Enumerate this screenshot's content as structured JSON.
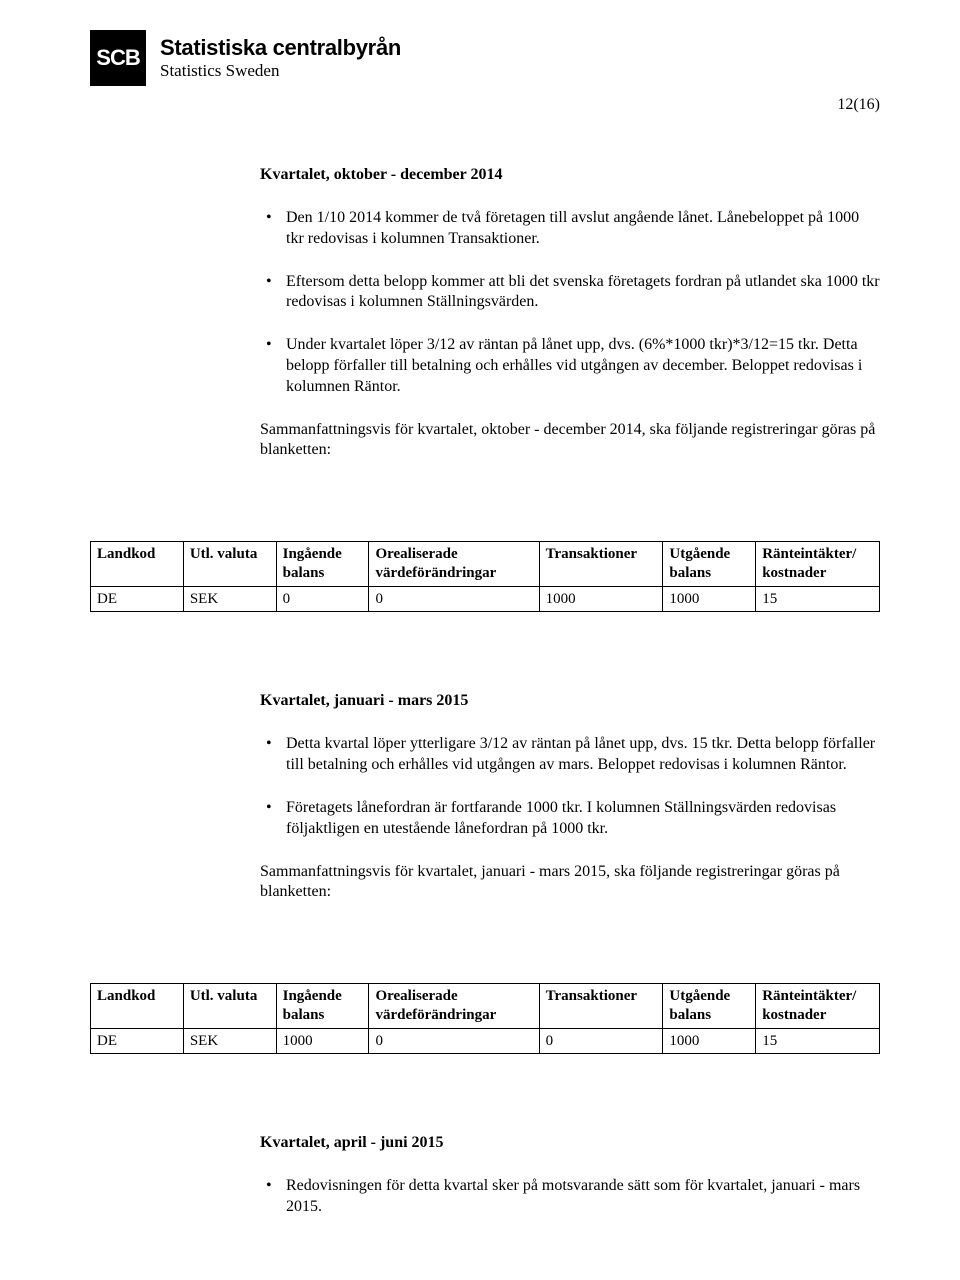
{
  "header": {
    "logo_abbr": "SCB",
    "logo_line1": "Statistiska centralbyrån",
    "logo_line2": "Statistics Sweden"
  },
  "page_number": "12(16)",
  "sections": {
    "s1": {
      "title": "Kvartalet, oktober - december 2014",
      "bullets": [
        "Den 1/10 2014 kommer de två företagen till avslut angående lånet. Lånebeloppet på 1000 tkr redovisas i kolumnen Transaktioner.",
        "Eftersom detta belopp kommer att bli det svenska företagets fordran på utlandet ska 1000 tkr redovisas i kolumnen Ställningsvärden.",
        "Under kvartalet löper 3/12 av räntan på lånet upp, dvs. (6%*1000 tkr)*3/12=15 tkr. Detta belopp förfaller till betalning och erhålles vid utgången av december. Beloppet redovisas i kolumnen Räntor."
      ],
      "summary": "Sammanfattningsvis för kvartalet, oktober - december 2014, ska följande registreringar göras på blanketten:"
    },
    "s2": {
      "title": "Kvartalet, januari - mars 2015",
      "bullets": [
        "Detta kvartal löper ytterligare 3/12 av räntan på lånet upp, dvs. 15 tkr. Detta belopp förfaller till betalning och erhålles vid utgången av mars. Beloppet redovisas i kolumnen Räntor.",
        "Företagets lånefordran är fortfarande 1000 tkr. I kolumnen Ställningsvärden redovisas följaktligen en utestående lånefordran på 1000 tkr."
      ],
      "summary": "Sammanfattningsvis för kvartalet, januari - mars 2015, ska följande registreringar göras på blanketten:"
    },
    "s3": {
      "title": "Kvartalet, april - juni 2015",
      "bullets": [
        "Redovisningen för detta kvartal sker på motsvarande sätt som för kvartalet, januari - mars 2015."
      ]
    }
  },
  "tables": {
    "columns": [
      "Landkod",
      "Utl. valuta",
      "Ingående balans",
      "Orealiserade värdeförändringar",
      "Transaktioner",
      "Utgående balans",
      "Ränteintäkter/ kostnader"
    ],
    "t1_row": [
      "DE",
      "SEK",
      "0",
      "0",
      "1000",
      "1000",
      "15"
    ],
    "t2_row": [
      "DE",
      "SEK",
      "1000",
      "0",
      "0",
      "1000",
      "15"
    ]
  }
}
